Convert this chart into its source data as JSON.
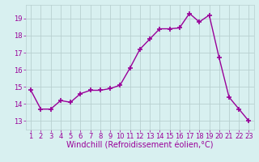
{
  "x": [
    1,
    2,
    3,
    4,
    5,
    6,
    7,
    8,
    9,
    10,
    11,
    12,
    13,
    14,
    15,
    16,
    17,
    18,
    19,
    20,
    21,
    22,
    23
  ],
  "y": [
    14.8,
    13.7,
    13.7,
    14.2,
    14.1,
    14.6,
    14.8,
    14.8,
    14.9,
    15.1,
    16.1,
    17.2,
    17.8,
    18.4,
    18.4,
    18.45,
    19.3,
    18.8,
    19.2,
    16.7,
    14.4,
    13.7,
    13.0
  ],
  "line_color": "#990099",
  "marker": "+",
  "marker_size": 4,
  "bg_color": "#d8f0f0",
  "grid_color": "#b8d0d0",
  "xlabel": "Windchill (Refroidissement éolien,°C)",
  "xlabel_color": "#990099",
  "xlabel_fontsize": 7,
  "yticks": [
    13,
    14,
    15,
    16,
    17,
    18,
    19
  ],
  "xticks": [
    1,
    2,
    3,
    4,
    5,
    6,
    7,
    8,
    9,
    10,
    11,
    12,
    13,
    14,
    15,
    16,
    17,
    18,
    19,
    20,
    21,
    22,
    23
  ],
  "ylim": [
    12.5,
    19.8
  ],
  "xlim": [
    0.5,
    23.5
  ],
  "tick_color": "#990099",
  "tick_fontsize": 6,
  "line_width": 1.0,
  "marker_edge_width": 1.2
}
